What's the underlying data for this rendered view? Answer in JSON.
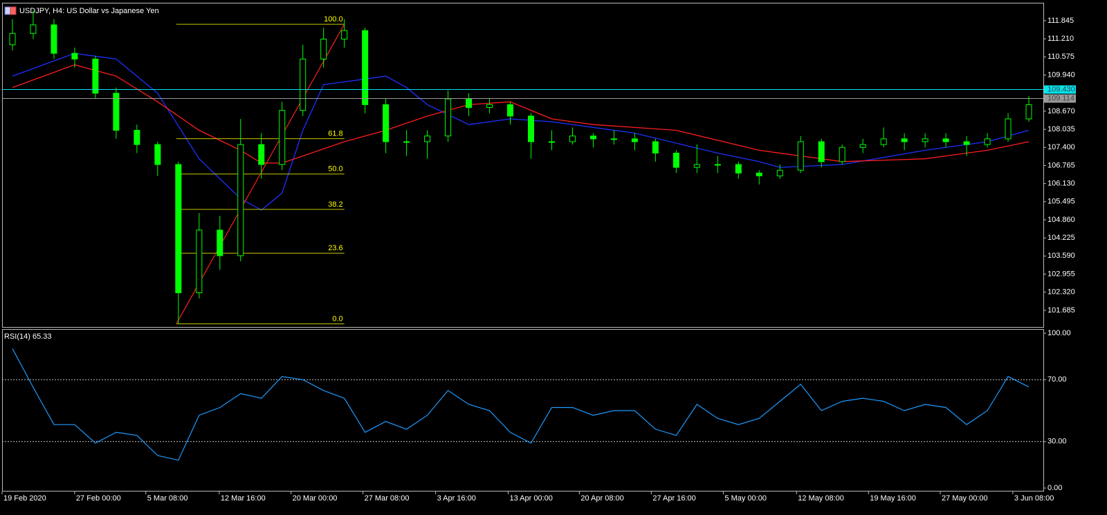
{
  "chart_data": [
    {
      "type": "candlestick",
      "title": "USDJPY, H4:  US Dollar vs Japanese Yen",
      "color": "#00ff00",
      "x": [
        0,
        1,
        2,
        3,
        4,
        5,
        6,
        7,
        8,
        9,
        10,
        11,
        12,
        13,
        14,
        15,
        16,
        17,
        18,
        19,
        20,
        21,
        22,
        23,
        24,
        25,
        26,
        27,
        28,
        29,
        30,
        31,
        32,
        33,
        34,
        35,
        36,
        37,
        38,
        39,
        40,
        41,
        42,
        43,
        44,
        45,
        46,
        47,
        48,
        49
      ],
      "open": [
        111.0,
        111.4,
        111.7,
        110.7,
        110.5,
        109.3,
        108.0,
        107.5,
        106.8,
        102.3,
        104.5,
        103.6,
        107.5,
        106.8,
        108.7,
        110.5,
        111.2,
        111.5,
        108.9,
        107.6,
        107.6,
        107.8,
        109.1,
        108.8,
        108.9,
        108.5,
        107.6,
        107.6,
        107.8,
        107.7,
        107.7,
        107.6,
        107.2,
        106.7,
        106.8,
        106.8,
        106.5,
        106.4,
        106.6,
        107.6,
        106.9,
        107.4,
        107.5,
        107.7,
        107.6,
        107.7,
        107.6,
        107.5,
        107.7,
        108.4
      ],
      "high": [
        111.9,
        112.2,
        111.9,
        110.9,
        110.6,
        109.5,
        108.2,
        107.6,
        106.9,
        105.1,
        105.0,
        108.4,
        107.9,
        109.0,
        111.0,
        111.6,
        111.9,
        111.6,
        109.1,
        108.0,
        108.0,
        109.4,
        109.3,
        109.1,
        109.0,
        108.6,
        108.0,
        108.1,
        107.9,
        108.0,
        107.9,
        107.7,
        107.3,
        107.5,
        107.1,
        106.9,
        106.6,
        106.8,
        107.8,
        107.7,
        107.5,
        107.7,
        108.1,
        107.9,
        107.9,
        107.9,
        107.8,
        107.9,
        108.6,
        109.2
      ],
      "low": [
        110.8,
        111.2,
        110.5,
        110.2,
        109.1,
        107.7,
        107.2,
        106.4,
        101.2,
        102.1,
        103.1,
        103.4,
        106.3,
        106.6,
        108.5,
        110.2,
        110.9,
        108.6,
        107.2,
        107.1,
        107.0,
        107.6,
        108.5,
        108.6,
        108.2,
        107.0,
        107.3,
        107.5,
        107.4,
        107.5,
        107.3,
        106.9,
        106.5,
        106.5,
        106.5,
        106.3,
        106.1,
        106.3,
        106.5,
        106.7,
        106.8,
        107.2,
        107.4,
        107.3,
        107.4,
        107.4,
        107.1,
        107.4,
        107.6,
        108.3
      ],
      "close": [
        111.4,
        111.7,
        110.7,
        110.5,
        109.3,
        108.0,
        107.5,
        106.8,
        102.3,
        104.5,
        103.6,
        107.5,
        106.8,
        108.7,
        110.5,
        111.2,
        111.5,
        108.9,
        107.6,
        107.6,
        107.8,
        109.1,
        108.8,
        108.9,
        108.5,
        107.6,
        107.6,
        107.8,
        107.7,
        107.7,
        107.6,
        107.2,
        106.7,
        106.8,
        106.8,
        106.5,
        106.4,
        106.6,
        107.6,
        106.9,
        107.4,
        107.5,
        107.7,
        107.6,
        107.7,
        107.6,
        107.5,
        107.7,
        108.4,
        108.9
      ],
      "moving_averages": [
        {
          "color": "#1e32ff",
          "x": [
            0,
            3,
            5,
            7,
            9,
            11,
            12,
            13,
            14,
            15,
            17,
            18,
            19,
            20,
            22,
            24,
            26,
            30,
            34,
            36,
            37,
            40,
            44,
            47,
            49
          ],
          "values": [
            109.9,
            110.7,
            110.5,
            109.3,
            107.0,
            105.6,
            105.2,
            105.8,
            108.0,
            109.6,
            109.8,
            109.9,
            109.5,
            108.9,
            108.2,
            108.4,
            108.3,
            107.9,
            107.2,
            106.9,
            106.7,
            106.8,
            107.3,
            107.6,
            108.0
          ]
        },
        {
          "color": "#ff1e1e",
          "x": [
            0,
            3,
            5,
            7,
            9,
            11,
            12,
            13,
            14,
            16,
            18,
            20,
            22,
            24,
            26,
            28,
            32,
            36,
            40,
            44,
            47,
            49
          ],
          "values": [
            109.5,
            110.3,
            109.9,
            109.0,
            108.0,
            107.3,
            106.85,
            106.85,
            107.1,
            107.6,
            108.0,
            108.5,
            108.9,
            109.0,
            108.4,
            108.2,
            108.0,
            107.3,
            106.9,
            107.0,
            107.3,
            107.6
          ]
        }
      ],
      "fibonacci": {
        "color": "#c8c800",
        "label_color": "#ffff00",
        "trend_color": "#ff2020",
        "x": [
          7.9,
          16
        ],
        "from": 101.21,
        "to": 111.72,
        "levels": [
          {
            "value": 100,
            "label": "100.0"
          },
          61.8,
          {
            "value": 50,
            "label": "50.0"
          },
          38.2,
          23.6,
          {
            "value": 0,
            "label": "0.0"
          }
        ]
      },
      "price_lines": [
        {
          "value": 109.43,
          "label": "109.430",
          "color": "#00e5ee"
        },
        {
          "value": 109.114,
          "label": "109.114",
          "color": "#9a9a9a"
        }
      ],
      "xlim": [
        -0.5,
        49.7
      ],
      "ylim": [
        101.1,
        112.45
      ],
      "yticks": [
        101.685,
        {
          "value": 102.32,
          "label": "102.320"
        },
        102.955,
        {
          "value": 103.59,
          "label": "103.590"
        },
        104.225,
        {
          "value": 104.86,
          "label": "104.860"
        },
        105.495,
        {
          "value": 106.13,
          "label": "106.130"
        },
        106.765,
        {
          "value": 107.4,
          "label": "107.400"
        },
        108.035,
        {
          "value": 108.67,
          "label": "108.670"
        },
        {
          "value": 109.94,
          "label": "109.940"
        },
        110.575,
        {
          "value": 111.21,
          "label": "111.210"
        },
        111.845
      ]
    },
    {
      "type": "line",
      "title": "RSI(14) 65.33",
      "color": "#1e9bff",
      "x": [
        0,
        1,
        2,
        3,
        4,
        5,
        6,
        7,
        8,
        9,
        10,
        11,
        12,
        13,
        14,
        15,
        16,
        17,
        18,
        19,
        20,
        21,
        22,
        23,
        24,
        25,
        26,
        27,
        28,
        29,
        30,
        31,
        32,
        33,
        34,
        35,
        36,
        37,
        38,
        39,
        40,
        41,
        42,
        43,
        44,
        45,
        46,
        47,
        48,
        49
      ],
      "values": [
        90,
        65,
        41,
        41,
        29,
        36,
        34,
        21,
        18,
        47,
        52,
        61,
        58,
        72,
        70,
        63,
        58,
        36,
        43,
        38,
        47,
        63,
        54,
        50,
        36,
        29,
        52,
        52,
        47,
        50,
        50,
        38,
        34,
        54,
        45,
        41,
        45,
        56,
        67,
        50,
        56,
        58,
        56,
        50,
        54,
        52,
        41,
        50,
        72,
        65.33
      ],
      "xlim": [
        -0.5,
        49.7
      ],
      "ylim": [
        0,
        100
      ],
      "yticks": [
        {
          "value": 0,
          "label": "0.00"
        },
        {
          "value": 30,
          "label": "30.00"
        },
        {
          "value": 70,
          "label": "70.00"
        },
        {
          "value": 100,
          "label": "100.00"
        }
      ],
      "xticks": [
        {
          "value": -0.5,
          "label": "19 Feb 2020"
        },
        {
          "value": 3,
          "label": "27 Feb 00:00"
        },
        {
          "value": 6.43,
          "label": "5 Mar 08:00"
        },
        {
          "value": 9.97,
          "label": "12 Mar 16:00"
        },
        {
          "value": 13.43,
          "label": "20 Mar 00:00"
        },
        {
          "value": 16.9,
          "label": "27 Mar 08:00"
        },
        {
          "value": 20.4,
          "label": "3 Apr 16:00"
        },
        {
          "value": 23.9,
          "label": "13 Apr 00:00"
        },
        {
          "value": 27.33,
          "label": "20 Apr 08:00"
        },
        {
          "value": 30.8,
          "label": "27 Apr 16:00"
        },
        {
          "value": 34.27,
          "label": "5 May 00:00"
        },
        {
          "value": 37.8,
          "label": "12 May 08:00"
        },
        {
          "value": 41.27,
          "label": "19 May 16:00"
        },
        {
          "value": 44.73,
          "label": "27 May 00:00"
        },
        {
          "value": 48.23,
          "label": "3 Jun 08:00"
        }
      ]
    }
  ]
}
